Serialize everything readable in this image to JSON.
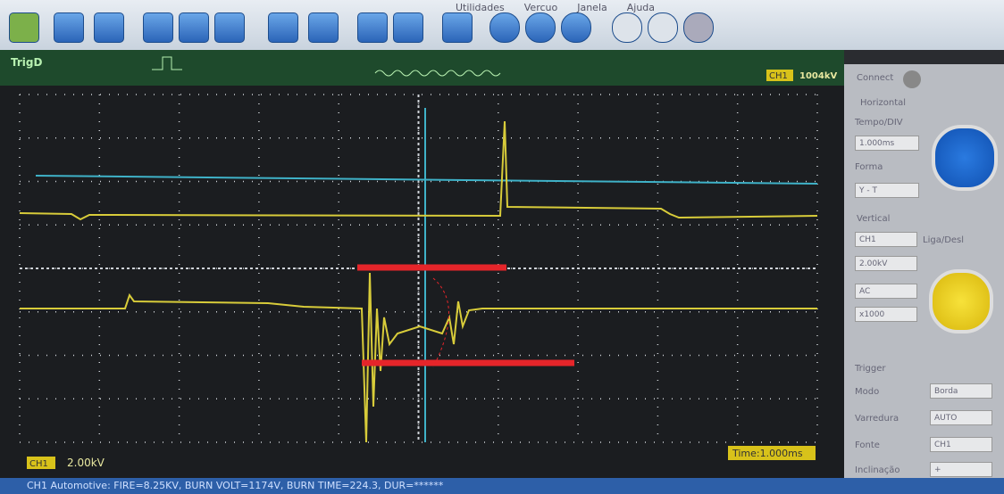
{
  "menu": [
    "Utilidades",
    "Vercuo",
    "Janela",
    "Ajuda"
  ],
  "trigger_bar": {
    "label": "TrigD",
    "channel": "CH1",
    "level": "1004kV"
  },
  "panel": {
    "connect": "Connect",
    "horizontal": "Horizontal",
    "time_div_label": "Tempo/DIV",
    "time_div": "1.000ms",
    "form_label": "Forma",
    "form": "Y - T",
    "vertical": "Vertical",
    "channel": "CH1",
    "on_off": "Liga/Desl",
    "volts": "2.00kV",
    "coupling": "AC",
    "probe": "x1000",
    "trigger": "Trigger",
    "mode_label": "Modo",
    "mode": "Borda",
    "sweep_label": "Varredura",
    "sweep": "AUTO",
    "source_label": "Fonte",
    "source": "CH1",
    "slope_label": "Inclinação",
    "slope": "+"
  },
  "scope": {
    "channel": "CH1",
    "volts_div": "2.00kV",
    "time": "Time:1.000ms"
  },
  "status": "CH1 Automotive: FIRE=8.25KV, BURN VOLT=1174V, BURN TIME=224.3, DUR=******"
}
